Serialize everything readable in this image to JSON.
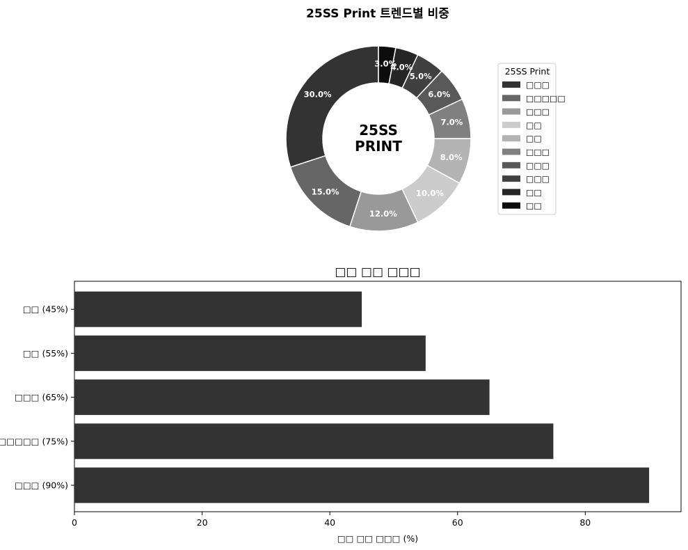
{
  "charts": [
    {
      "type": "pie",
      "title": "25SS Print 트렌드별 비중",
      "center_label": [
        "25SS",
        "PRINT"
      ],
      "legend": {
        "title": "25SS Print",
        "placement": "right"
      },
      "slices": [
        {
          "label": "□□□",
          "value": 30.0,
          "pct_label": "30.0%",
          "color": "#333333"
        },
        {
          "label": "□□□□□",
          "value": 15.0,
          "pct_label": "15.0%",
          "color": "#666666"
        },
        {
          "label": "□□□",
          "value": 12.0,
          "pct_label": "12.0%",
          "color": "#999999"
        },
        {
          "label": "□□",
          "value": 10.0,
          "pct_label": "10.0%",
          "color": "#cccccc"
        },
        {
          "label": "□□",
          "value": 8.0,
          "pct_label": "8.0%",
          "color": "#b3b3b3"
        },
        {
          "label": "□□□",
          "value": 7.0,
          "pct_label": "7.0%",
          "color": "#808080"
        },
        {
          "label": "□□□",
          "value": 6.0,
          "pct_label": "6.0%",
          "color": "#595959"
        },
        {
          "label": "□□□",
          "value": 5.0,
          "pct_label": "5.0%",
          "color": "#404040"
        },
        {
          "label": "□□",
          "value": 4.0,
          "pct_label": "4.0%",
          "color": "#262626"
        },
        {
          "label": "□□",
          "value": 3.0,
          "pct_label": "3.0%",
          "color": "#0d0d0d"
        }
      ]
    },
    {
      "type": "bar",
      "orientation": "horizontal",
      "title": "□□ □□ □□□",
      "xlabel": "□□ □□ □□□ (%)",
      "xlim": [
        0,
        95
      ],
      "xticks": [
        0,
        20,
        40,
        60,
        80
      ],
      "categories": [
        "□□□ (90%)",
        "□□□□□ (75%)",
        "□□□ (65%)",
        "□□ (55%)",
        "□□ (45%)"
      ],
      "values": [
        90,
        75,
        65,
        55,
        45
      ],
      "color": "#333333"
    }
  ]
}
